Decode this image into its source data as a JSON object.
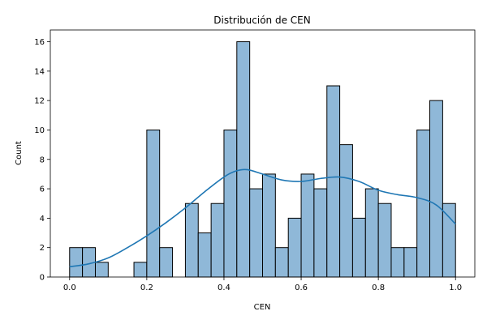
{
  "chart_data": {
    "type": "bar",
    "subtype": "histogram with kde",
    "title": "Distribución de CEN",
    "xlabel": "CEN",
    "ylabel": "Count",
    "xlim": [
      -0.05,
      1.05
    ],
    "ylim": [
      0,
      16.8
    ],
    "xticks": [
      0.0,
      0.2,
      0.4,
      0.6,
      0.8,
      1.0
    ],
    "xtick_labels": [
      "0.0",
      "0.2",
      "0.4",
      "0.6",
      "0.8",
      "1.0"
    ],
    "yticks": [
      0,
      2,
      4,
      6,
      8,
      10,
      12,
      14,
      16
    ],
    "ytick_labels": [
      "0",
      "2",
      "4",
      "6",
      "8",
      "10",
      "12",
      "14",
      "16"
    ],
    "grid": false,
    "legend": "none",
    "bin_edges": [
      0.0,
      0.0333,
      0.0667,
      0.1,
      0.1333,
      0.1667,
      0.2,
      0.2333,
      0.2667,
      0.3,
      0.3333,
      0.3667,
      0.4,
      0.4333,
      0.4667,
      0.5,
      0.5333,
      0.5667,
      0.6,
      0.6333,
      0.6667,
      0.7,
      0.7333,
      0.7667,
      0.8,
      0.8333,
      0.8667,
      0.9,
      0.9333,
      0.9667,
      1.0
    ],
    "counts": [
      2,
      2,
      1,
      0,
      0,
      1,
      10,
      2,
      0,
      5,
      3,
      5,
      10,
      16,
      6,
      7,
      2,
      4,
      7,
      6,
      13,
      9,
      4,
      6,
      5,
      2,
      2,
      10,
      12,
      5
    ],
    "kde": {
      "x": [
        0.0,
        0.05,
        0.1,
        0.15,
        0.2,
        0.25,
        0.3,
        0.35,
        0.4,
        0.43,
        0.46,
        0.5,
        0.55,
        0.6,
        0.65,
        0.7,
        0.75,
        0.8,
        0.85,
        0.9,
        0.95,
        1.0
      ],
      "y": [
        0.7,
        0.9,
        1.3,
        2.0,
        2.8,
        3.7,
        4.7,
        5.8,
        6.8,
        7.2,
        7.3,
        7.0,
        6.6,
        6.5,
        6.7,
        6.8,
        6.5,
        5.9,
        5.6,
        5.4,
        4.9,
        3.6
      ]
    },
    "colors": {
      "bar_fill": "#8fb8d8",
      "bar_edge": "#000000",
      "kde_line": "#1f77b4"
    }
  }
}
